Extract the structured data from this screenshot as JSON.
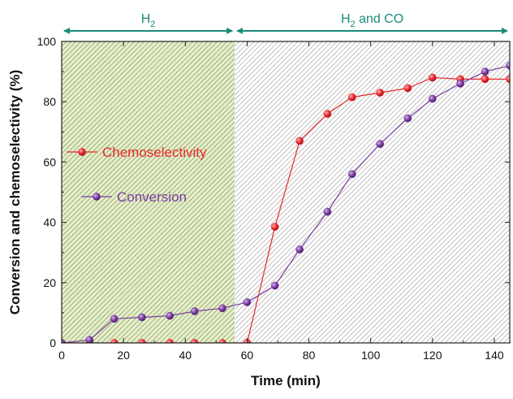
{
  "chart_data": {
    "type": "line",
    "xlabel": "Time (min)",
    "ylabel": "Conversion and chemoselectivity (%)",
    "xlim": [
      0,
      145
    ],
    "ylim": [
      0,
      100
    ],
    "x_ticks": [
      0,
      20,
      40,
      60,
      80,
      100,
      120,
      140
    ],
    "y_ticks": [
      0,
      20,
      40,
      60,
      80,
      100
    ],
    "regions": [
      {
        "label_main": "H",
        "label_sub": "2",
        "label_rest": "",
        "x_start": 0,
        "x_end": 56,
        "fill_color": "#e6efc8",
        "hatch_color": "#8fa37a"
      },
      {
        "label_main": "H",
        "label_sub": "2",
        "label_rest": " and CO",
        "x_start": 56,
        "x_end": 145,
        "fill_color": "#ffffff",
        "hatch_color": "#b0b0b0"
      }
    ],
    "series": [
      {
        "name": "Chemoselectivity",
        "color": "#e8292f",
        "marker": "circle",
        "points": [
          [
            0,
            0
          ],
          [
            9,
            0
          ],
          [
            17,
            0
          ],
          [
            26,
            0
          ],
          [
            35,
            0
          ],
          [
            43,
            0
          ],
          [
            52,
            0
          ],
          [
            60,
            0
          ],
          [
            69,
            38.5
          ],
          [
            77,
            67
          ],
          [
            86,
            76
          ],
          [
            94,
            81.5
          ],
          [
            103,
            83
          ],
          [
            112,
            84.5
          ],
          [
            120,
            88
          ],
          [
            129,
            87.5
          ],
          [
            137,
            87.5
          ],
          [
            145,
            87.5
          ]
        ]
      },
      {
        "name": "Conversion",
        "color": "#7b3f9e",
        "marker": "circle",
        "points": [
          [
            0,
            0
          ],
          [
            9,
            1
          ],
          [
            17,
            8
          ],
          [
            26,
            8.5
          ],
          [
            35,
            9
          ],
          [
            43,
            10.5
          ],
          [
            52,
            11.5
          ],
          [
            60,
            13.5
          ],
          [
            69,
            19
          ],
          [
            77,
            31
          ],
          [
            86,
            43.5
          ],
          [
            94,
            56
          ],
          [
            103,
            66
          ],
          [
            112,
            74.5
          ],
          [
            120,
            81
          ],
          [
            129,
            86
          ],
          [
            137,
            90
          ],
          [
            145,
            92
          ]
        ]
      }
    ],
    "legend_position": "left-middle",
    "grid": false
  }
}
